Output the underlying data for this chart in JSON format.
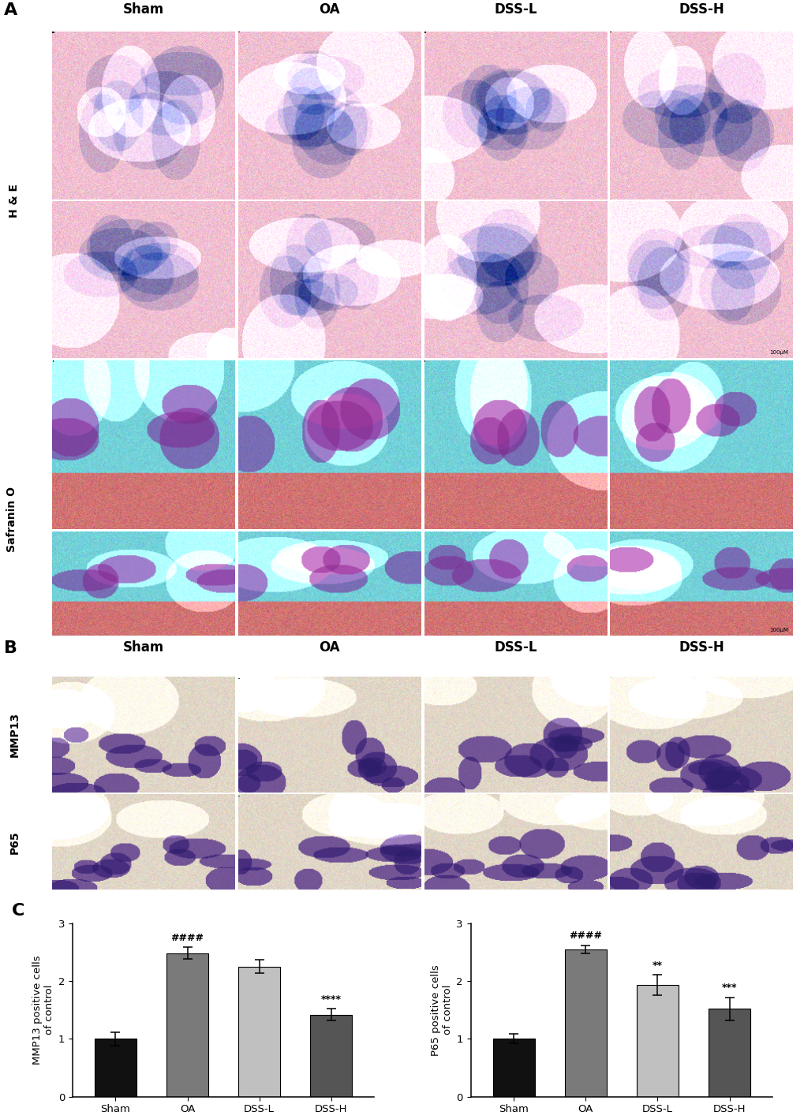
{
  "panel_A_label": "A",
  "panel_B_label": "B",
  "panel_C_label": "C",
  "col_labels": [
    "Sham",
    "OA",
    "DSS-L",
    "DSS-H"
  ],
  "he_row_label": "H & E",
  "safranin_row_label": "Safranin O",
  "mmp13_row_label": "MMP13",
  "p65_row_label": "P65",
  "mmp13_values": [
    1.0,
    2.48,
    2.25,
    1.42
  ],
  "mmp13_errors": [
    0.12,
    0.1,
    0.12,
    0.1
  ],
  "p65_values": [
    1.0,
    2.55,
    1.93,
    1.52
  ],
  "p65_errors": [
    0.08,
    0.07,
    0.18,
    0.2
  ],
  "bar_colors_mmp13": [
    "#111111",
    "#7a7a7a",
    "#c0c0c0",
    "#555555"
  ],
  "bar_colors_p65": [
    "#111111",
    "#7a7a7a",
    "#c0c0c0",
    "#555555"
  ],
  "mmp13_ylabel": "MMP13 positive cells\nof control",
  "p65_ylabel": "P65 positive cells\nof control",
  "xlabel_labels": [
    "Sham",
    "OA",
    "DSS-L",
    "DSS-H"
  ],
  "ylim": [
    0,
    3
  ],
  "yticks": [
    0,
    1,
    2,
    3
  ],
  "he_base_color": [
    0.95,
    0.75,
    0.82
  ],
  "safranin_base_color": [
    0.55,
    0.88,
    0.9
  ],
  "ihc_base_color": [
    0.88,
    0.82,
    0.72
  ],
  "background_color": "#ffffff",
  "figure_width": 10.2,
  "figure_height": 14.19
}
